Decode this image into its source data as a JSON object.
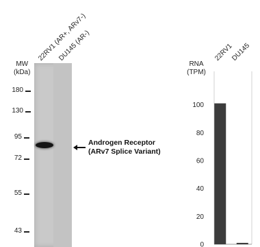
{
  "blot": {
    "lanes": [
      "22RV1 (AR+, ARv7-)",
      "DU145 (AR-)"
    ],
    "mw_title": [
      "MW",
      "(kDa)"
    ],
    "markers": [
      {
        "label": "180",
        "tick": true
      },
      {
        "label": "130",
        "tick": true
      },
      {
        "label": "95",
        "tick": true
      },
      {
        "label": "72",
        "tick": true
      },
      {
        "label": "55",
        "tick": true
      },
      {
        "label": "43",
        "tick": true
      }
    ],
    "band_label_line1": "Androgen Receptor",
    "band_label_line2": "(ARv7  Splice Variant)"
  },
  "chart_data": {
    "type": "bar",
    "categories": [
      "22RV1",
      "DU145"
    ],
    "values": [
      101,
      1
    ],
    "ylabel": [
      "RNA",
      "(TPM)"
    ],
    "ylim": [
      0,
      120
    ],
    "yticks": [
      0,
      20,
      40,
      60,
      80,
      100
    ],
    "bar_color": "#3c3c3c",
    "grid": false
  }
}
